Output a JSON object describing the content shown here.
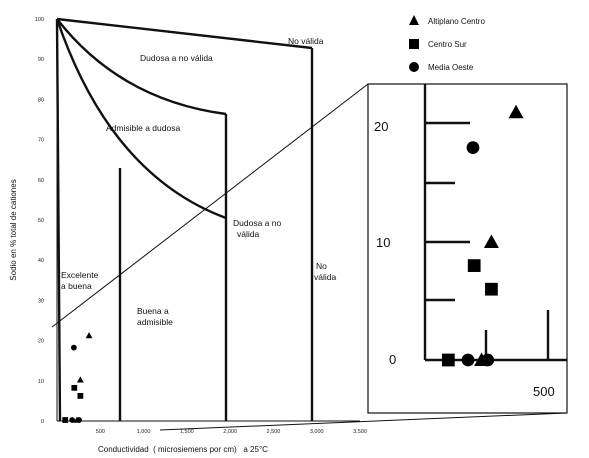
{
  "chart_data": {
    "type": "scatter",
    "xlabel": "Conductividad  ( microsiemens por cm)   a 25°C",
    "ylabel": "Sodio en % total de cationes",
    "xlim": [
      0,
      3500
    ],
    "ylim": [
      0,
      100
    ],
    "x_ticks": [
      "500",
      "1,000",
      "1,500",
      "2,000",
      "2,500",
      "3,000",
      "3,500"
    ],
    "y_ticks": [
      "0",
      "10",
      "20",
      "30",
      "40",
      "50",
      "60",
      "70",
      "80",
      "90",
      "100"
    ],
    "zones": [
      {
        "label_lines": [
          "Excelente",
          "a buena"
        ]
      },
      {
        "label_lines": [
          "Buena a",
          "admisible"
        ]
      },
      {
        "label_lines": [
          "Admisible a dudosa"
        ]
      },
      {
        "label_lines": [
          "Dudosa a no válida"
        ]
      },
      {
        "label_lines": [
          "Dudosa a no",
          "válida"
        ]
      },
      {
        "label_lines": [
          "No válida"
        ]
      },
      {
        "label_lines": [
          "No",
          "válida"
        ]
      }
    ],
    "series": [
      {
        "name": "Altiplano Centro",
        "marker": "triangle",
        "points": [
          {
            "x": 370,
            "y": 21
          },
          {
            "x": 270,
            "y": 10
          },
          {
            "x": 230,
            "y": 0
          }
        ]
      },
      {
        "name": "Centro Sur",
        "marker": "square",
        "points": [
          {
            "x": 200,
            "y": 8
          },
          {
            "x": 270,
            "y": 6
          },
          {
            "x": 95,
            "y": 0
          }
        ]
      },
      {
        "name": "Media Oeste",
        "marker": "circle",
        "points": [
          {
            "x": 195,
            "y": 18
          },
          {
            "x": 175,
            "y": 0
          },
          {
            "x": 255,
            "y": 0
          }
        ]
      }
    ],
    "inset": {
      "x_ticks": [
        "500"
      ],
      "y_ticks": [
        "0",
        "10",
        "20"
      ]
    },
    "legend_position": "top-right",
    "grid": false
  }
}
